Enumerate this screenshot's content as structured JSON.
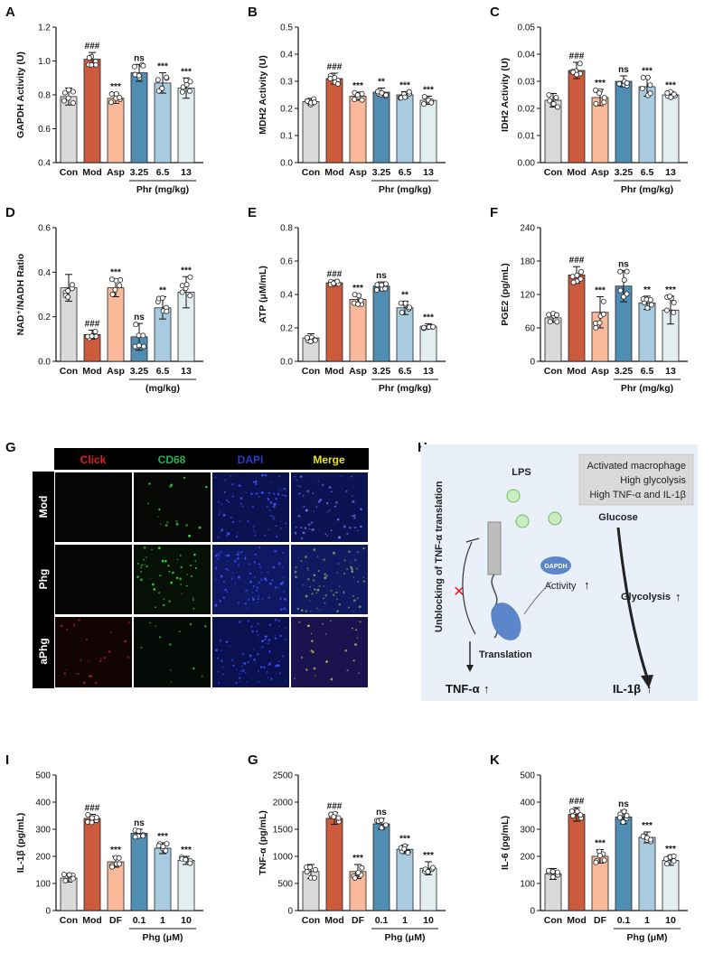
{
  "colors": {
    "con": "#d9d9d9",
    "mod": "#cc5a3c",
    "pos": "#f9b99a",
    "low": "#4f8db3",
    "mid": "#a9cbe0",
    "high": "#e2eef0"
  },
  "chart_data": [
    {
      "panel": "A",
      "type": "bar",
      "ylabel": "GAPDH Activity (U)",
      "ylim": [
        0.4,
        1.2
      ],
      "yticks": [
        "0.4",
        "0.6",
        "0.8",
        "1.0",
        "1.2"
      ],
      "ytick_values": [
        0.4,
        0.6,
        0.8,
        1.0,
        1.2
      ],
      "categories": [
        "Con",
        "Mod",
        "Asp",
        "3.25",
        "6.5",
        "13"
      ],
      "values": [
        0.79,
        1.01,
        0.78,
        0.93,
        0.87,
        0.84
      ],
      "errors": [
        0.05,
        0.04,
        0.03,
        0.05,
        0.06,
        0.06
      ],
      "significance": [
        "",
        "###",
        "***",
        "ns",
        "***",
        "***"
      ],
      "group_label": "Phr (mg/kg)",
      "group_span": [
        3,
        5
      ]
    },
    {
      "panel": "B",
      "type": "bar",
      "ylabel": "MDH2 Activity (U)",
      "ylim": [
        0.0,
        0.5
      ],
      "yticks": [
        "0.0",
        "0.1",
        "0.2",
        "0.3",
        "0.4",
        "0.5"
      ],
      "ytick_values": [
        0,
        0.1,
        0.2,
        0.3,
        0.4,
        0.5
      ],
      "categories": [
        "Con",
        "Mod",
        "Asp",
        "3.25",
        "6.5",
        "13"
      ],
      "values": [
        0.225,
        0.31,
        0.245,
        0.26,
        0.25,
        0.23
      ],
      "errors": [
        0.012,
        0.02,
        0.015,
        0.015,
        0.012,
        0.015
      ],
      "significance": [
        "",
        "###",
        "***",
        "**",
        "***",
        "***"
      ],
      "group_label": "Phr (mg/kg)",
      "group_span": [
        3,
        5
      ]
    },
    {
      "panel": "C",
      "type": "bar",
      "ylabel": "IDH2 Activity (U)",
      "ylim": [
        0.0,
        0.05
      ],
      "yticks": [
        "0.00",
        "0.01",
        "0.02",
        "0.03",
        "0.04",
        "0.05"
      ],
      "ytick_values": [
        0,
        0.01,
        0.02,
        0.03,
        0.04,
        0.05
      ],
      "categories": [
        "Con",
        "Mod",
        "Asp",
        "3.25",
        "6.5",
        "13"
      ],
      "values": [
        0.023,
        0.034,
        0.024,
        0.03,
        0.028,
        0.025
      ],
      "errors": [
        0.0025,
        0.003,
        0.003,
        0.002,
        0.0035,
        0.0012
      ],
      "significance": [
        "",
        "###",
        "***",
        "ns",
        "***",
        "***"
      ],
      "group_label": "Phr (mg/kg)",
      "group_span": [
        3,
        5
      ]
    },
    {
      "panel": "D",
      "type": "bar",
      "ylabel": "NAD⁺/NADH Ratio",
      "ylim": [
        0.0,
        0.6
      ],
      "yticks": [
        "0.0",
        "0.2",
        "0.4",
        "0.6"
      ],
      "ytick_values": [
        0,
        0.2,
        0.4,
        0.6
      ],
      "categories": [
        "Con",
        "Mod",
        "Asp",
        "3.25",
        "6.5",
        "13"
      ],
      "values": [
        0.33,
        0.12,
        0.33,
        0.11,
        0.24,
        0.31
      ],
      "errors": [
        0.06,
        0.02,
        0.04,
        0.06,
        0.05,
        0.07
      ],
      "significance": [
        "",
        "###",
        "***",
        "ns",
        "**",
        "***"
      ],
      "group_label": "(mg/kg)",
      "group_span": [
        3,
        5
      ]
    },
    {
      "panel": "E",
      "type": "bar",
      "ylabel": "ATP (μM/mL)",
      "ylim": [
        0.0,
        0.8
      ],
      "yticks": [
        "0.0",
        "0.2",
        "0.4",
        "0.6",
        "0.8"
      ],
      "ytick_values": [
        0,
        0.2,
        0.4,
        0.6,
        0.8
      ],
      "categories": [
        "Con",
        "Mod",
        "Asp",
        "3.25",
        "6.5",
        "13"
      ],
      "values": [
        0.14,
        0.47,
        0.37,
        0.45,
        0.32,
        0.21
      ],
      "errors": [
        0.025,
        0.015,
        0.03,
        0.025,
        0.04,
        0.015
      ],
      "significance": [
        "",
        "###",
        "***",
        "ns",
        "**",
        "***"
      ],
      "group_label": "Phr (mg/kg)",
      "group_span": [
        3,
        5
      ]
    },
    {
      "panel": "F",
      "type": "bar",
      "ylabel": "PGE2 (pg/mL)",
      "ylim": [
        0,
        240
      ],
      "yticks": [
        "0",
        "60",
        "120",
        "180",
        "240"
      ],
      "ytick_values": [
        0,
        60,
        120,
        180,
        240
      ],
      "categories": [
        "Con",
        "Mod",
        "Asp",
        "3.25",
        "6.5",
        "13"
      ],
      "values": [
        78,
        155,
        88,
        135,
        105,
        92
      ],
      "errors": [
        8,
        15,
        28,
        28,
        12,
        25
      ],
      "significance": [
        "",
        "###",
        "***",
        "ns",
        "**",
        "***"
      ],
      "group_label": "Phr (mg/kg)",
      "group_span": [
        3,
        5
      ]
    },
    {
      "panel": "I",
      "type": "bar",
      "ylabel": "IL-1β (pg/mL)",
      "ylim": [
        0,
        500
      ],
      "yticks": [
        "0",
        "100",
        "200",
        "300",
        "400",
        "500"
      ],
      "ytick_values": [
        0,
        100,
        200,
        300,
        400,
        500
      ],
      "categories": [
        "Con",
        "Mod",
        "DF",
        "0.1",
        "1",
        "10"
      ],
      "values": [
        120,
        340,
        180,
        285,
        230,
        185
      ],
      "errors": [
        15,
        15,
        20,
        15,
        20,
        15
      ],
      "significance": [
        "",
        "###",
        "***",
        "ns",
        "***",
        "***"
      ],
      "group_label": "Phg (μM)",
      "group_span": [
        3,
        5
      ]
    },
    {
      "panel": "G",
      "type": "bar",
      "ylabel": "TNF-α (pg/mL)",
      "ylim": [
        0,
        2500
      ],
      "yticks": [
        "0",
        "500",
        "1000",
        "1500",
        "2000",
        "2500"
      ],
      "ytick_values": [
        0,
        500,
        1000,
        1500,
        2000,
        2500
      ],
      "categories": [
        "Con",
        "Mod",
        "DF",
        "0.1",
        "1",
        "10"
      ],
      "values": [
        720,
        1700,
        720,
        1600,
        1130,
        780
      ],
      "errors": [
        130,
        110,
        130,
        100,
        80,
        120
      ],
      "significance": [
        "",
        "###",
        "***",
        "ns",
        "***",
        "***"
      ],
      "group_label": "Phg (μM)",
      "group_span": [
        3,
        5
      ]
    },
    {
      "panel": "K",
      "type": "bar",
      "ylabel": "IL-6 (pg/mL)",
      "ylim": [
        0,
        500
      ],
      "yticks": [
        "0",
        "100",
        "200",
        "300",
        "400",
        "500"
      ],
      "ytick_values": [
        0,
        100,
        200,
        300,
        400,
        500
      ],
      "categories": [
        "Con",
        "Mod",
        "DF",
        "0.1",
        "1",
        "10"
      ],
      "values": [
        135,
        355,
        200,
        345,
        270,
        185
      ],
      "errors": [
        20,
        25,
        25,
        25,
        20,
        18
      ],
      "significance": [
        "",
        "###",
        "***",
        "ns",
        "***",
        "***"
      ],
      "group_label": "Phg (μM)",
      "group_span": [
        3,
        5
      ]
    }
  ],
  "panel_g": {
    "label": "G",
    "columns": [
      "Click",
      "CD68",
      "DAPI",
      "Merge"
    ],
    "column_colors": [
      "#e02020",
      "#22b14c",
      "#2a3cc8",
      "#e8e020"
    ],
    "rows": [
      "Mod",
      "Phg",
      "aPhg"
    ]
  },
  "panel_h": {
    "label": "H",
    "legend_lines": [
      "Activated macrophage",
      "High glycolysis",
      "High TNF-α  and IL-1β"
    ],
    "lps": "LPS",
    "glucose": "Glucose",
    "gapdh": "GAPDH",
    "activity": "Activity",
    "glycolysis": "Glycolysis",
    "unblocking": "Unblocking of TNF-α translation",
    "translation": "Translation",
    "tnf": "TNF-α",
    "il1b": "IL-1β",
    "up_arrow": "↑"
  }
}
